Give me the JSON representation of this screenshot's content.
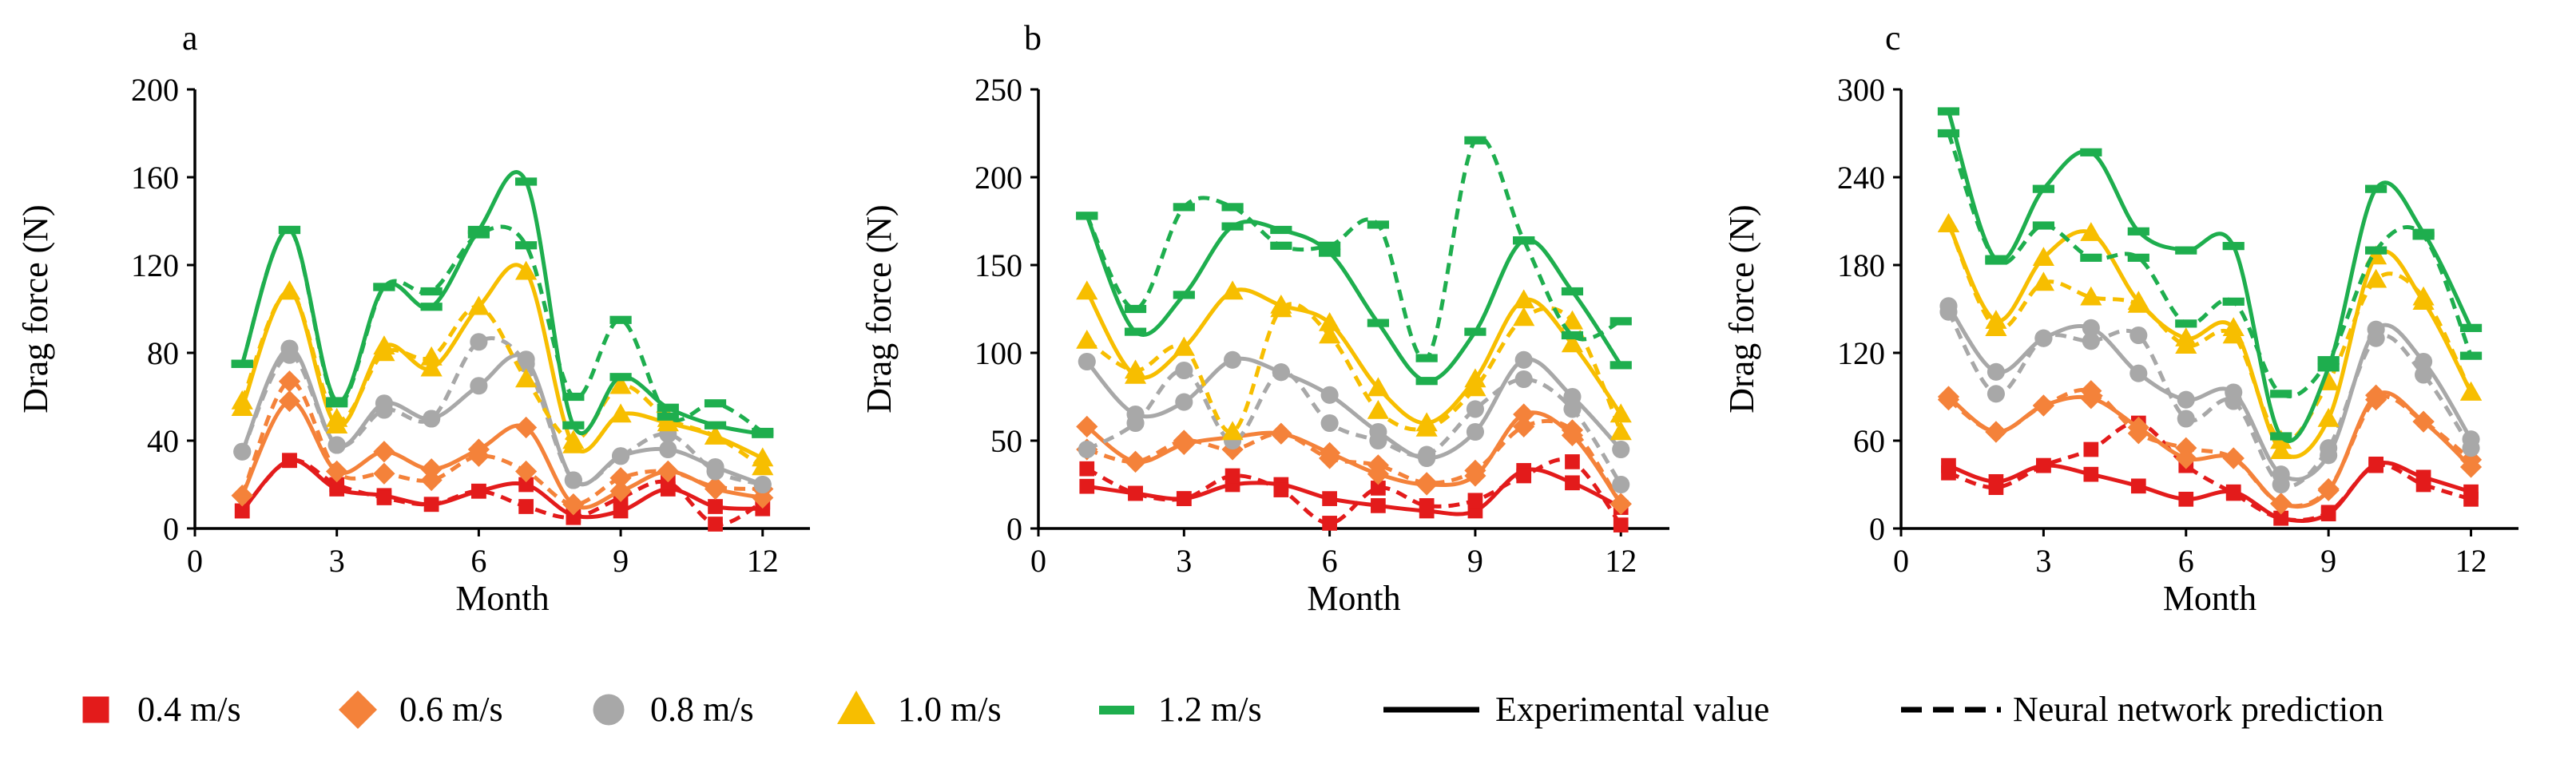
{
  "chart_data": [
    {
      "type": "line",
      "panel_label": "a",
      "xlabel": "Month",
      "ylabel": "Drag force (N)",
      "xlim": [
        0,
        13
      ],
      "ylim": [
        0,
        200
      ],
      "xticks": [
        0,
        3,
        6,
        9,
        12
      ],
      "yticks": [
        0,
        40,
        80,
        120,
        160,
        200
      ],
      "x": [
        1,
        2,
        3,
        4,
        5,
        6,
        7,
        8,
        9,
        10,
        11,
        12
      ],
      "series": [
        {
          "name": "0.4 m/s",
          "kind": "experimental",
          "values": [
            8,
            31,
            18,
            15,
            11,
            17,
            20,
            6,
            8,
            18,
            10,
            9
          ]
        },
        {
          "name": "0.4 m/s",
          "kind": "prediction",
          "values": [
            8,
            31,
            20,
            14,
            11,
            17,
            10,
            5,
            14,
            21,
            2,
            12
          ]
        },
        {
          "name": "0.6 m/s",
          "kind": "experimental",
          "values": [
            15,
            58,
            26,
            35,
            27,
            36,
            46,
            11,
            17,
            26,
            18,
            14
          ]
        },
        {
          "name": "0.6 m/s",
          "kind": "prediction",
          "values": [
            15,
            67,
            26,
            25,
            22,
            33,
            26,
            11,
            23,
            26,
            19,
            18
          ]
        },
        {
          "name": "0.8 m/s",
          "kind": "experimental",
          "values": [
            35,
            82,
            38,
            57,
            50,
            65,
            77,
            22,
            33,
            36,
            28,
            20
          ]
        },
        {
          "name": "0.8 m/s",
          "kind": "prediction",
          "values": [
            35,
            79,
            38,
            54,
            50,
            85,
            75,
            22,
            33,
            43,
            26,
            20
          ]
        },
        {
          "name": "1.0 m/s",
          "kind": "experimental",
          "values": [
            55,
            108,
            47,
            83,
            73,
            101,
            117,
            38,
            52,
            48,
            42,
            32
          ]
        },
        {
          "name": "1.0 m/s",
          "kind": "prediction",
          "values": [
            58,
            108,
            50,
            80,
            78,
            101,
            68,
            40,
            65,
            50,
            42,
            28
          ]
        },
        {
          "name": "1.2 m/s",
          "kind": "experimental",
          "values": [
            75,
            136,
            58,
            110,
            101,
            136,
            158,
            47,
            69,
            55,
            47,
            43
          ]
        },
        {
          "name": "1.2 m/s",
          "kind": "prediction",
          "values": [
            75,
            136,
            57,
            110,
            108,
            134,
            129,
            60,
            95,
            51,
            57,
            44
          ]
        }
      ]
    },
    {
      "type": "line",
      "panel_label": "b",
      "xlabel": "Month",
      "ylabel": "Drag force (N)",
      "xlim": [
        0,
        13
      ],
      "ylim": [
        0,
        250
      ],
      "xticks": [
        0,
        3,
        6,
        9,
        12
      ],
      "yticks": [
        0,
        50,
        100,
        150,
        200,
        250
      ],
      "x": [
        1,
        2,
        3,
        4,
        5,
        6,
        7,
        8,
        9,
        10,
        11,
        12
      ],
      "series": [
        {
          "name": "0.4 m/s",
          "kind": "experimental",
          "values": [
            24,
            20,
            17,
            25,
            25,
            17,
            13,
            10,
            10,
            33,
            26,
            12
          ]
        },
        {
          "name": "0.4 m/s",
          "kind": "prediction",
          "values": [
            34,
            20,
            17,
            30,
            22,
            3,
            23,
            13,
            16,
            30,
            38,
            2
          ]
        },
        {
          "name": "0.6 m/s",
          "kind": "experimental",
          "values": [
            58,
            38,
            48,
            52,
            54,
            43,
            31,
            25,
            30,
            65,
            53,
            14
          ]
        },
        {
          "name": "0.6 m/s",
          "kind": "prediction",
          "values": [
            45,
            38,
            50,
            45,
            54,
            40,
            36,
            26,
            33,
            58,
            56,
            14
          ]
        },
        {
          "name": "0.8 m/s",
          "kind": "experimental",
          "values": [
            95,
            65,
            72,
            96,
            89,
            76,
            55,
            40,
            55,
            96,
            75,
            45
          ]
        },
        {
          "name": "0.8 m/s",
          "kind": "prediction",
          "values": [
            45,
            60,
            90,
            50,
            89,
            60,
            50,
            42,
            68,
            85,
            68,
            25
          ]
        },
        {
          "name": "1.0 m/s",
          "kind": "experimental",
          "values": [
            135,
            87,
            103,
            135,
            127,
            117,
            80,
            60,
            85,
            130,
            105,
            65
          ]
        },
        {
          "name": "1.0 m/s",
          "kind": "prediction",
          "values": [
            107,
            90,
            103,
            55,
            125,
            110,
            67,
            57,
            80,
            120,
            118,
            55
          ]
        },
        {
          "name": "1.2 m/s",
          "kind": "experimental",
          "values": [
            178,
            112,
            133,
            172,
            170,
            157,
            117,
            84,
            112,
            164,
            135,
            93
          ]
        },
        {
          "name": "1.2 m/s",
          "kind": "prediction",
          "values": [
            178,
            125,
            183,
            183,
            161,
            161,
            173,
            97,
            221,
            164,
            110,
            118
          ]
        }
      ]
    },
    {
      "type": "line",
      "panel_label": "c",
      "xlabel": "Month",
      "ylabel": "Drag force (N)",
      "xlim": [
        0,
        13
      ],
      "ylim": [
        0,
        300
      ],
      "xticks": [
        0,
        3,
        6,
        9,
        12
      ],
      "yticks": [
        0,
        60,
        120,
        180,
        240,
        300
      ],
      "x": [
        1,
        2,
        3,
        4,
        5,
        6,
        7,
        8,
        9,
        10,
        11,
        12
      ],
      "series": [
        {
          "name": "0.4 m/s",
          "kind": "experimental",
          "values": [
            43,
            32,
            43,
            37,
            29,
            20,
            25,
            7,
            10,
            44,
            35,
            25
          ]
        },
        {
          "name": "0.4 m/s",
          "kind": "prediction",
          "values": [
            38,
            28,
            43,
            54,
            72,
            43,
            24,
            7,
            11,
            43,
            30,
            20
          ]
        },
        {
          "name": "0.6 m/s",
          "kind": "experimental",
          "values": [
            90,
            66,
            84,
            89,
            69,
            48,
            48,
            17,
            26,
            91,
            73,
            42
          ]
        },
        {
          "name": "0.6 m/s",
          "kind": "prediction",
          "values": [
            88,
            66,
            84,
            94,
            65,
            55,
            48,
            17,
            27,
            88,
            73,
            47
          ]
        },
        {
          "name": "0.8 m/s",
          "kind": "experimental",
          "values": [
            152,
            107,
            130,
            137,
            106,
            88,
            93,
            37,
            50,
            136,
            114,
            61
          ]
        },
        {
          "name": "0.8 m/s",
          "kind": "prediction",
          "values": [
            148,
            92,
            130,
            128,
            132,
            75,
            87,
            30,
            55,
            130,
            105,
            55
          ]
        },
        {
          "name": "1.0 m/s",
          "kind": "experimental",
          "values": [
            208,
            142,
            185,
            202,
            155,
            130,
            137,
            53,
            75,
            186,
            155,
            93
          ]
        },
        {
          "name": "1.0 m/s",
          "kind": "prediction",
          "values": [
            208,
            137,
            168,
            158,
            153,
            125,
            132,
            60,
            100,
            170,
            158,
            93
          ]
        },
        {
          "name": "1.2 m/s",
          "kind": "experimental",
          "values": [
            285,
            184,
            232,
            257,
            203,
            190,
            193,
            63,
            110,
            232,
            202,
            137
          ]
        },
        {
          "name": "1.2 m/s",
          "kind": "prediction",
          "values": [
            270,
            183,
            207,
            185,
            185,
            140,
            155,
            92,
            115,
            190,
            200,
            118
          ]
        }
      ]
    }
  ],
  "legend": {
    "series": [
      {
        "label": "0.4 m/s",
        "color": "#E31B1B",
        "marker": "square"
      },
      {
        "label": "0.6 m/s",
        "color": "#F4823A",
        "marker": "diamond"
      },
      {
        "label": "0.8 m/s",
        "color": "#A8A8A8",
        "marker": "circle"
      },
      {
        "label": "1.0 m/s",
        "color": "#F7BE00",
        "marker": "triangle"
      },
      {
        "label": "1.2 m/s",
        "color": "#1EAE4E",
        "marker": "dash"
      }
    ],
    "experimental_label": "Experimental value",
    "prediction_label": "Neural network prediction"
  }
}
